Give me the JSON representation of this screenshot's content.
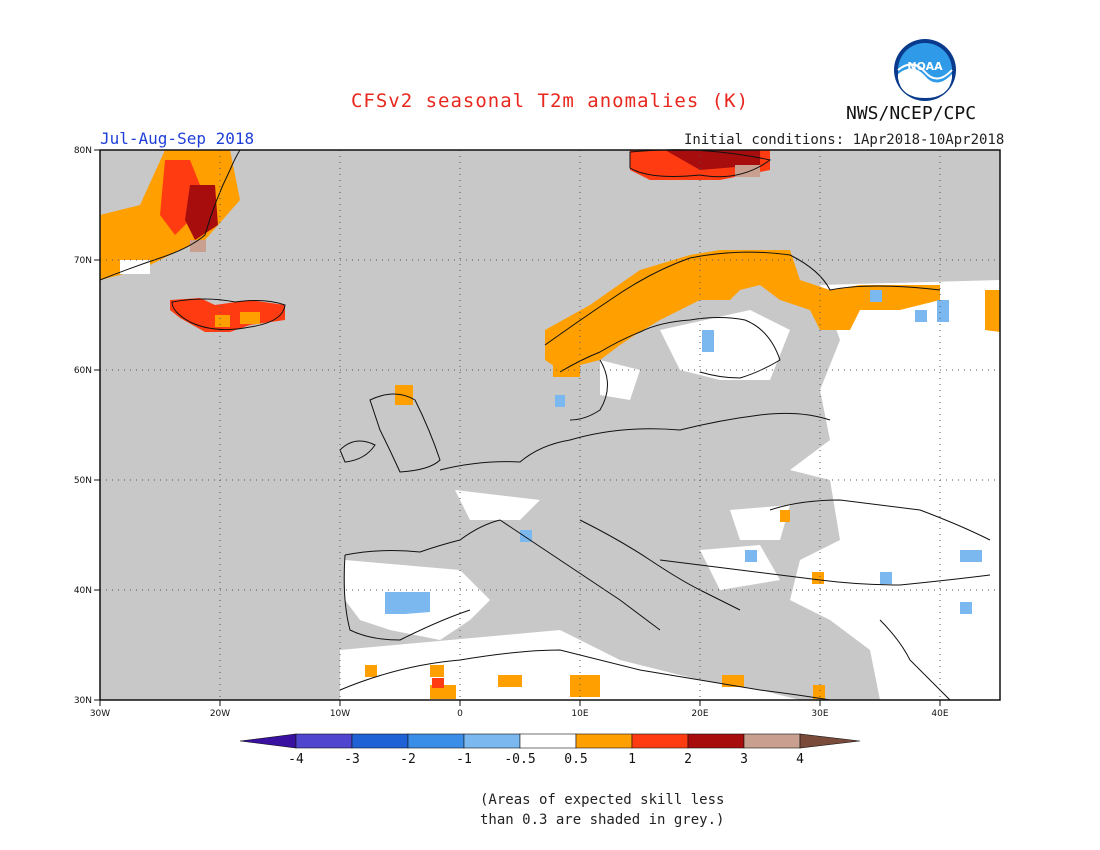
{
  "header": {
    "title": "CFSv2 seasonal T2m anomalies (K)",
    "period": "Jul-Aug-Sep 2018",
    "initial_conditions": "Initial conditions: 1Apr2018-10Apr2018",
    "agency": "NWS/NCEP/CPC",
    "logo_text": "NOAA"
  },
  "map": {
    "lat_labels": [
      "80N",
      "70N",
      "60N",
      "50N",
      "40N",
      "30N"
    ],
    "lon_labels": [
      "30W",
      "20W",
      "10W",
      "0",
      "10E",
      "20E",
      "30E",
      "40E"
    ],
    "background_color": "#c8c8c8"
  },
  "colorbar": {
    "labels": [
      "-4",
      "-3",
      "-2",
      "-1",
      "-0.5",
      "0.5",
      "1",
      "2",
      "3",
      "4"
    ],
    "colors": [
      "#3a10a0",
      "#4f45cf",
      "#1f62d6",
      "#3a8ee8",
      "#7bb8ef",
      "#ffffff",
      "#ff9f00",
      "#ff3b12",
      "#a80d0d",
      "#c9a08f",
      "#7a4a3a"
    ]
  },
  "footnote": {
    "line1": "(Areas of expected skill less",
    "line2": "than 0.3 are shaded in grey.)"
  }
}
